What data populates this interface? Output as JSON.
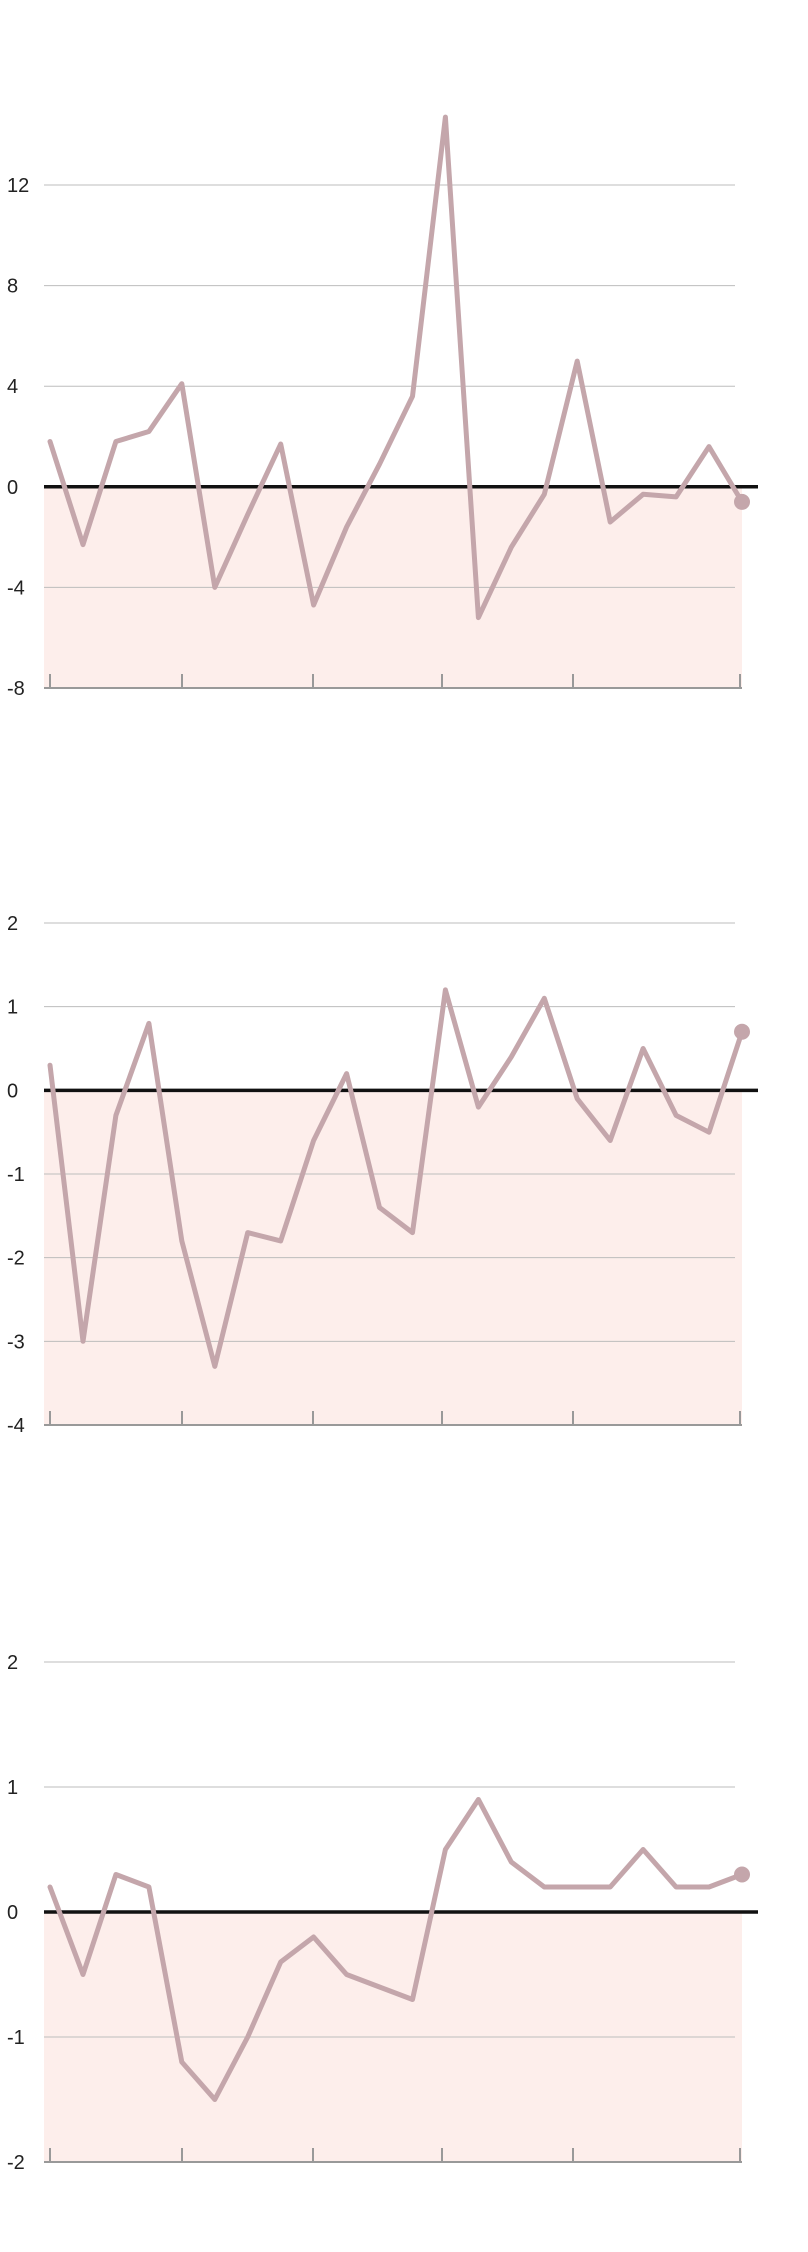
{
  "chart_data": [
    {
      "type": "line",
      "y_ticks": [
        "12",
        "8",
        "4",
        "0",
        "-4",
        "-8"
      ],
      "ylim": [
        -8,
        15.5
      ],
      "grid": true,
      "x": [
        0,
        1,
        2,
        3,
        4,
        5,
        6,
        7,
        8,
        9,
        10,
        11,
        12,
        13,
        14,
        15,
        16,
        17,
        18,
        19,
        20,
        21
      ],
      "values": [
        1.8,
        -2.3,
        1.8,
        2.2,
        4.1,
        -4.0,
        -1.1,
        1.7,
        -4.7,
        -1.6,
        0.9,
        3.6,
        14.7,
        -5.2,
        -2.4,
        -0.3,
        5.0,
        -1.4,
        -0.3,
        -0.4,
        1.6,
        -0.6
      ],
      "zero_line": true,
      "colors": {
        "line": "#c4a6ab",
        "fill": "#fdeeeb",
        "zero": "#111111",
        "grid": "#bdbdbd",
        "axis": "#999999"
      }
    },
    {
      "type": "line",
      "y_ticks": [
        "2",
        "1",
        "0",
        "-1",
        "-2",
        "-3",
        "-4"
      ],
      "ylim": [
        -4,
        2
      ],
      "grid": true,
      "x": [
        0,
        1,
        2,
        3,
        4,
        5,
        6,
        7,
        8,
        9,
        10,
        11,
        12,
        13,
        14,
        15,
        16,
        17,
        18,
        19,
        20,
        21
      ],
      "values": [
        0.3,
        -3.0,
        -0.3,
        0.8,
        -1.8,
        -3.3,
        -1.7,
        -1.8,
        -0.6,
        0.2,
        -1.4,
        -1.7,
        1.2,
        -0.2,
        0.4,
        1.1,
        -0.1,
        -0.6,
        0.5,
        -0.3,
        -0.5,
        0.7
      ],
      "zero_line": true,
      "colors": {
        "line": "#c4a6ab",
        "fill": "#fdeeeb",
        "zero": "#111111",
        "grid": "#bdbdbd",
        "axis": "#999999"
      }
    },
    {
      "type": "line",
      "y_ticks": [
        "2",
        "1",
        "0",
        "-1",
        "-2"
      ],
      "ylim": [
        -2,
        2
      ],
      "grid": true,
      "x": [
        0,
        1,
        2,
        3,
        4,
        5,
        6,
        7,
        8,
        9,
        10,
        11,
        12,
        13,
        14,
        15,
        16,
        17,
        18,
        19,
        20,
        21
      ],
      "values": [
        0.2,
        -0.5,
        0.3,
        0.2,
        -1.2,
        -1.5,
        -1.0,
        -0.4,
        -0.2,
        -0.5,
        -0.6,
        -0.7,
        0.5,
        0.9,
        0.4,
        0.2,
        0.2,
        0.2,
        0.5,
        0.2,
        0.2,
        0.3
      ],
      "zero_line": true,
      "colors": {
        "line": "#c4a6ab",
        "fill": "#fdeeeb",
        "zero": "#111111",
        "grid": "#bdbdbd",
        "axis": "#999999"
      }
    }
  ]
}
